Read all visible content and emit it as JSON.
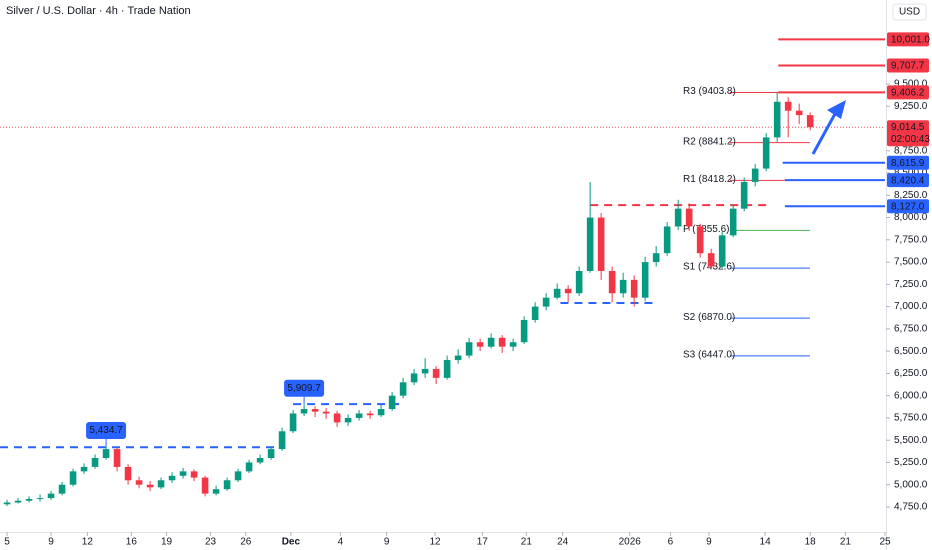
{
  "chart_data": {
    "type": "candlestick",
    "title": "Silver / U.S. Dollar · 4h · Trade Nation",
    "currency": "USD",
    "up_color": "#089981",
    "down_color": "#f23645",
    "grid": false,
    "xlim": [
      -0.64,
      79.8
    ],
    "ylim": [
      4469,
      10443
    ],
    "xticks": [
      {
        "value": 0,
        "label": "5"
      },
      {
        "value": 4,
        "label": "9"
      },
      {
        "value": 7.3,
        "label": "12"
      },
      {
        "value": 11.3,
        "label": "16"
      },
      {
        "value": 14.5,
        "label": "19"
      },
      {
        "value": 18.5,
        "label": "23"
      },
      {
        "value": 21.7,
        "label": "26"
      },
      {
        "value": 25.8,
        "label": "Dec"
      },
      {
        "value": 30.3,
        "label": "4"
      },
      {
        "value": 34.5,
        "label": "9"
      },
      {
        "value": 38.9,
        "label": "12"
      },
      {
        "value": 43.2,
        "label": "17"
      },
      {
        "value": 47.2,
        "label": "21"
      },
      {
        "value": 50.5,
        "label": "24"
      },
      {
        "value": 56.6,
        "label": "2026"
      },
      {
        "value": 60.3,
        "label": "6"
      },
      {
        "value": 63.8,
        "label": "9"
      },
      {
        "value": 68.9,
        "label": "14"
      },
      {
        "value": 73,
        "label": "18"
      },
      {
        "value": 76.2,
        "label": "21"
      },
      {
        "value": 79.8,
        "label": "25"
      }
    ],
    "yticks": [
      {
        "value": 4750,
        "label": "4,750.0"
      },
      {
        "value": 5000,
        "label": "5,000.0"
      },
      {
        "value": 5250,
        "label": "5,250.0"
      },
      {
        "value": 5500,
        "label": "5,500.0"
      },
      {
        "value": 5750,
        "label": "5,750.0"
      },
      {
        "value": 6000,
        "label": "6,000.0"
      },
      {
        "value": 6250,
        "label": "6,250.0"
      },
      {
        "value": 6500,
        "label": "6,500.0"
      },
      {
        "value": 6750,
        "label": "6,750.0"
      },
      {
        "value": 7000,
        "label": "7,000.0"
      },
      {
        "value": 7250,
        "label": "7,250.0"
      },
      {
        "value": 7500,
        "label": "7,500.0"
      },
      {
        "value": 7750,
        "label": "7,750.0"
      },
      {
        "value": 8000,
        "label": "8,000.0"
      },
      {
        "value": 8250,
        "label": "8,250.0"
      },
      {
        "value": 8500,
        "label": "8,500.0"
      },
      {
        "value": 8750,
        "label": "8,750.0"
      },
      {
        "value": 9250,
        "label": "9,250.0"
      },
      {
        "value": 9500,
        "label": "9,500.0"
      }
    ],
    "x": [
      0,
      1,
      2,
      3,
      4,
      5,
      6,
      7,
      8,
      9,
      10,
      11,
      12,
      13,
      14,
      15,
      16,
      17,
      18,
      19,
      20,
      21,
      22,
      23,
      24,
      25,
      26,
      27,
      28,
      29,
      30,
      31,
      32,
      33,
      34,
      35,
      36,
      37,
      38,
      39,
      40,
      41,
      42,
      43,
      44,
      45,
      46,
      47,
      48,
      49,
      50,
      51,
      52,
      53,
      54,
      55,
      56,
      57,
      58,
      59,
      60,
      61,
      62,
      63,
      64,
      65,
      66,
      67,
      68,
      69,
      70,
      71,
      72,
      73
    ],
    "open": [
      4780,
      4800,
      4820,
      4840,
      4850,
      4900,
      5000,
      5150,
      5200,
      5300,
      5400,
      5200,
      5050,
      5000,
      4970,
      5050,
      5100,
      5150,
      5080,
      4900,
      4950,
      5050,
      5150,
      5250,
      5300,
      5400,
      5600,
      5800,
      5850,
      5820,
      5800,
      5700,
      5750,
      5800,
      5780,
      5850,
      6000,
      6150,
      6250,
      6300,
      6200,
      6400,
      6450,
      6600,
      6550,
      6650,
      6550,
      6600,
      6850,
      7000,
      7100,
      7200,
      7150,
      7400,
      8000,
      7400,
      7150,
      7300,
      7100,
      7500,
      7600,
      7900,
      8100,
      7900,
      7600,
      7450,
      7800,
      8100,
      8400,
      8550,
      8900,
      9300,
      9200,
      9150
    ],
    "high": [
      4830,
      4850,
      4870,
      4890,
      4930,
      5030,
      5180,
      5240,
      5340,
      5434.7,
      5420,
      5230,
      5090,
      5040,
      5080,
      5140,
      5190,
      5170,
      5100,
      4990,
      5080,
      5180,
      5280,
      5340,
      5430,
      5640,
      5840,
      5909.7,
      5880,
      5860,
      5830,
      5790,
      5840,
      5830,
      5900,
      6040,
      6200,
      6300,
      6420,
      6330,
      6450,
      6520,
      6650,
      6640,
      6700,
      6680,
      6640,
      6890,
      7050,
      7150,
      7260,
      7240,
      7450,
      8400,
      8050,
      7450,
      7380,
      7350,
      7560,
      7680,
      7950,
      8200,
      8160,
      7930,
      7650,
      7840,
      8150,
      8450,
      8600,
      8950,
      9406.2,
      9350,
      9280,
      9180
    ],
    "low": [
      4760,
      4790,
      4800,
      4810,
      4830,
      4880,
      4980,
      5120,
      5180,
      5280,
      5150,
      5000,
      4960,
      4930,
      4950,
      5020,
      5070,
      5040,
      4870,
      4880,
      4930,
      5030,
      5130,
      5230,
      5280,
      5380,
      5580,
      5770,
      5760,
      5740,
      5650,
      5660,
      5720,
      5740,
      5760,
      5830,
      5970,
      6120,
      6200,
      6130,
      6180,
      6360,
      6420,
      6500,
      6530,
      6480,
      6500,
      6580,
      6820,
      6960,
      7080,
      7050,
      7120,
      7380,
      7300,
      7050,
      7100,
      7000,
      7060,
      7450,
      7570,
      7860,
      7850,
      7550,
      7420,
      7430,
      7780,
      8070,
      8350,
      8520,
      8850,
      8900,
      9050,
      8980
    ],
    "close": [
      4800,
      4820,
      4840,
      4850,
      4900,
      5000,
      5150,
      5200,
      5300,
      5400,
      5200,
      5050,
      5000,
      4970,
      5050,
      5100,
      5150,
      5080,
      4900,
      4950,
      5050,
      5150,
      5250,
      5300,
      5400,
      5600,
      5800,
      5850,
      5820,
      5800,
      5700,
      5750,
      5800,
      5780,
      5850,
      6000,
      6150,
      6250,
      6300,
      6200,
      6400,
      6450,
      6600,
      6550,
      6650,
      6550,
      6600,
      6850,
      7000,
      7100,
      7200,
      7150,
      7400,
      8000,
      7400,
      7150,
      7300,
      7100,
      7500,
      7600,
      7900,
      8100,
      7900,
      7600,
      7450,
      7800,
      8100,
      8400,
      8550,
      8900,
      9300,
      9200,
      9150,
      9014.5
    ],
    "current_price": {
      "value": 9014.5,
      "label": "9,014.5",
      "countdown": "02:00:43",
      "color": "#f23645"
    },
    "price_lines": [
      {
        "value": 10001.0,
        "label": "10,001.0",
        "color": "#f23645",
        "x_start": 70.1
      },
      {
        "value": 9707.7,
        "label": "9,707.7",
        "color": "#f23645",
        "x_start": 70.1
      },
      {
        "value": 9406.2,
        "label": "9,406.2",
        "color": "#f23645",
        "x_start": 70.1
      },
      {
        "value": 8615.9,
        "label": "8,615.9",
        "color": "#2962ff",
        "x_start": 70.5
      },
      {
        "value": 8420.4,
        "label": "8,420.4",
        "color": "#2962ff",
        "x_start": 70.7
      },
      {
        "value": 8127.0,
        "label": "8,127.0",
        "color": "#2962ff",
        "x_start": 70.7
      }
    ],
    "pivots": [
      {
        "label": "R3 (9403.8)",
        "value": 9403.8,
        "color": "#f23645"
      },
      {
        "label": "R2 (8841.2)",
        "value": 8841.2,
        "color": "#f23645"
      },
      {
        "label": "R1 (8418.2)",
        "value": 8418.2,
        "color": "#f23645"
      },
      {
        "label": "P (7855.6)",
        "value": 7855.6,
        "color": "#4caf50"
      },
      {
        "label": "S1 (7432.6)",
        "value": 7432.6,
        "color": "#2962ff"
      },
      {
        "label": "S2 (6870.0)",
        "value": 6870.0,
        "color": "#2962ff"
      },
      {
        "label": "S3 (6447.0)",
        "value": 6447.0,
        "color": "#2962ff"
      }
    ],
    "dashed_lines": [
      {
        "value": 5420,
        "x": [
          -0.64,
          24.8
        ],
        "color": "#2962ff"
      },
      {
        "value": 5905,
        "x": [
          26,
          35.7
        ],
        "color": "#2962ff"
      },
      {
        "value": 7040,
        "x": [
          50.3,
          59
        ],
        "color": "#2962ff"
      },
      {
        "value": 8140,
        "x": [
          53,
          69.4
        ],
        "color": "#f23645"
      }
    ],
    "callouts": [
      {
        "x": 9,
        "value": 5434.7,
        "label": "5,434.7"
      },
      {
        "x": 27,
        "value": 5909.7,
        "label": "5,909.7"
      }
    ]
  }
}
